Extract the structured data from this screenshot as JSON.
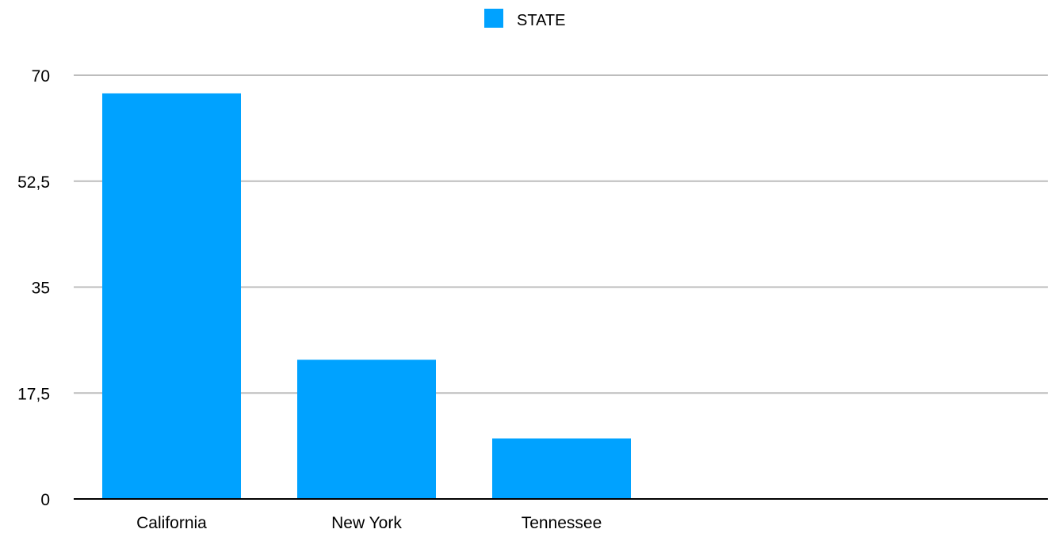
{
  "chart_data": {
    "type": "bar",
    "categories": [
      "California",
      "New York",
      "Tennessee"
    ],
    "series": [
      {
        "name": "STATE",
        "values": [
          67,
          23,
          10
        ]
      }
    ],
    "y_ticks": [
      "0",
      "17,5",
      "35",
      "52,5",
      "70"
    ],
    "y_tick_values": [
      0,
      17.5,
      35,
      52.5,
      70
    ],
    "ylim": [
      0,
      70
    ],
    "grid": true,
    "legend_placement": "top-center",
    "bar_color": "#00A2FF",
    "grid_color": "#BDBDBD",
    "axis_color": "#000000"
  }
}
